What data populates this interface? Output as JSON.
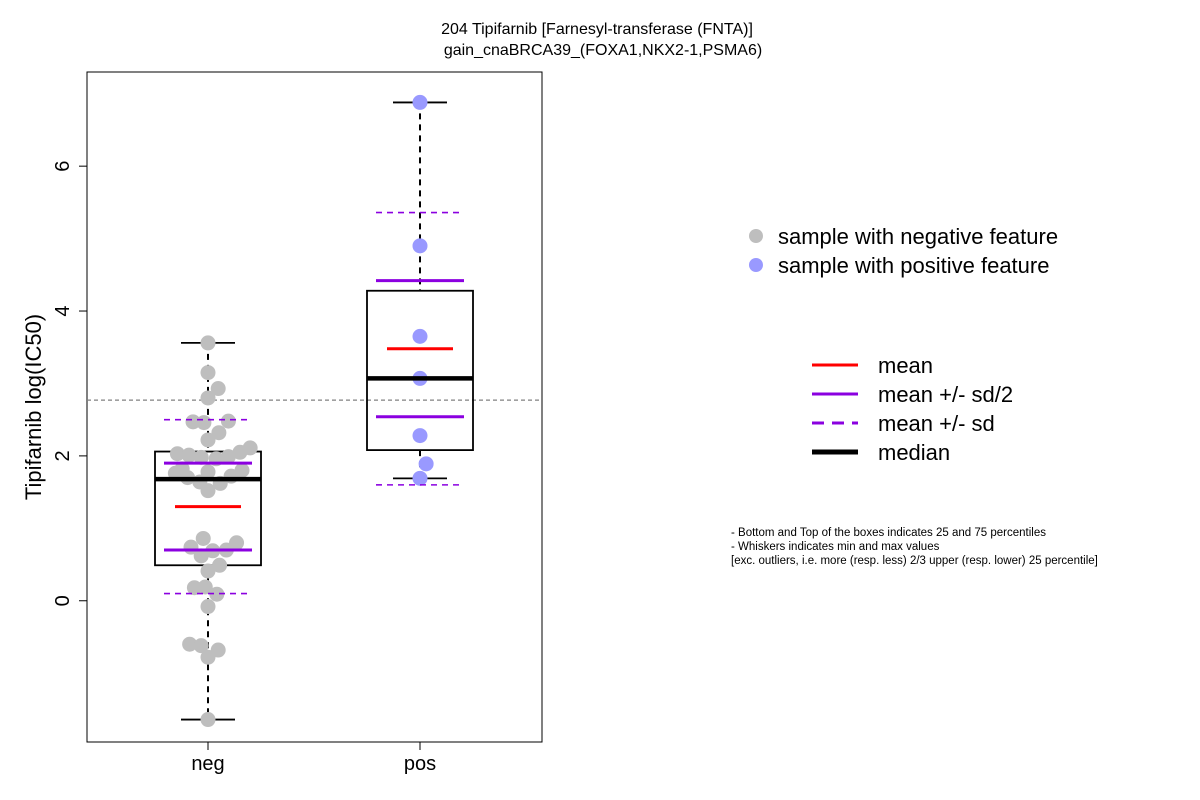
{
  "chart_data": {
    "type": "box",
    "title_line1": "204 Tipifarnib [Farnesyl-transferase (FNTA)]",
    "title_line2": "gain_cnaBRCA39_(FOXA1,NKX2-1,PSMA6)",
    "ylabel": "Tipifarnib log(IC50)",
    "xlabel": "",
    "ylim": [
      -1.95,
      7.3
    ],
    "yticks": [
      0,
      2,
      4,
      6
    ],
    "reference_line": 2.77,
    "categories": [
      "neg",
      "pos"
    ],
    "groups": [
      {
        "name": "neg",
        "point_color": "#bebebe",
        "q1": 0.49,
        "median": 1.68,
        "q3": 2.06,
        "whisker_low": -1.64,
        "whisker_high": 3.56,
        "mean": 1.3,
        "mean_minus_half_sd": 0.7,
        "mean_plus_half_sd": 1.9,
        "mean_minus_sd": 0.1,
        "mean_plus_sd": 2.5,
        "points": [
          {
            "offset": 0,
            "y": 3.56
          },
          {
            "offset": 0,
            "y": 3.15
          },
          {
            "offset": 0.15,
            "y": 2.93
          },
          {
            "offset": 0,
            "y": 2.8
          },
          {
            "offset": -0.22,
            "y": 2.47
          },
          {
            "offset": -0.06,
            "y": 2.46
          },
          {
            "offset": 0.3,
            "y": 2.48
          },
          {
            "offset": 0.16,
            "y": 2.32
          },
          {
            "offset": 0,
            "y": 2.22
          },
          {
            "offset": 0.62,
            "y": 2.11
          },
          {
            "offset": 0.47,
            "y": 2.05
          },
          {
            "offset": -0.45,
            "y": 2.03
          },
          {
            "offset": -0.28,
            "y": 2.01
          },
          {
            "offset": -0.1,
            "y": 1.98
          },
          {
            "offset": 0.12,
            "y": 1.96
          },
          {
            "offset": 0.3,
            "y": 1.99
          },
          {
            "offset": -0.38,
            "y": 1.82
          },
          {
            "offset": -0.48,
            "y": 1.76
          },
          {
            "offset": 0,
            "y": 1.78
          },
          {
            "offset": 0.34,
            "y": 1.72
          },
          {
            "offset": 0.5,
            "y": 1.8
          },
          {
            "offset": -0.3,
            "y": 1.7
          },
          {
            "offset": -0.12,
            "y": 1.64
          },
          {
            "offset": 0.18,
            "y": 1.62
          },
          {
            "offset": 0,
            "y": 1.52
          },
          {
            "offset": -0.07,
            "y": 0.86
          },
          {
            "offset": -0.25,
            "y": 0.74
          },
          {
            "offset": -0.1,
            "y": 0.62
          },
          {
            "offset": 0.07,
            "y": 0.69
          },
          {
            "offset": 0.27,
            "y": 0.7
          },
          {
            "offset": 0.42,
            "y": 0.8
          },
          {
            "offset": 0.17,
            "y": 0.49
          },
          {
            "offset": 0,
            "y": 0.41
          },
          {
            "offset": -0.2,
            "y": 0.18
          },
          {
            "offset": -0.04,
            "y": 0.19
          },
          {
            "offset": 0.13,
            "y": 0.09
          },
          {
            "offset": 0,
            "y": -0.08
          },
          {
            "offset": -0.27,
            "y": -0.6
          },
          {
            "offset": -0.1,
            "y": -0.62
          },
          {
            "offset": 0.15,
            "y": -0.68
          },
          {
            "offset": 0,
            "y": -0.78
          },
          {
            "offset": 0,
            "y": -1.64
          }
        ]
      },
      {
        "name": "pos",
        "point_color": "#9999ff",
        "q1": 2.08,
        "median": 3.07,
        "q3": 4.28,
        "whisker_low": 1.69,
        "whisker_high": 6.88,
        "mean": 3.48,
        "mean_minus_half_sd": 2.54,
        "mean_plus_half_sd": 4.42,
        "mean_minus_sd": 1.6,
        "mean_plus_sd": 5.36,
        "points": [
          {
            "offset": 0,
            "y": 6.88
          },
          {
            "offset": 0,
            "y": 4.9
          },
          {
            "offset": 0,
            "y": 3.65
          },
          {
            "offset": 0,
            "y": 3.07
          },
          {
            "offset": 0,
            "y": 2.28
          },
          {
            "offset": 0.09,
            "y": 1.89
          },
          {
            "offset": 0,
            "y": 1.69
          }
        ]
      }
    ],
    "legend_points": [
      {
        "label": "sample with negative feature",
        "color": "#bebebe"
      },
      {
        "label": "sample with positive feature",
        "color": "#9999ff"
      }
    ],
    "legend_lines": [
      {
        "label": "mean",
        "color": "#ff0000",
        "style": "solid",
        "weight": "normal"
      },
      {
        "label": "mean +/- sd/2",
        "color": "#8b00e0",
        "style": "solid",
        "weight": "normal"
      },
      {
        "label": "mean +/- sd",
        "color": "#8b00e0",
        "style": "dashed",
        "weight": "normal"
      },
      {
        "label": "median",
        "color": "#000000",
        "style": "solid",
        "weight": "bold"
      }
    ],
    "notes": [
      "- Bottom and Top of the boxes indicates 25 and 75 percentiles",
      "- Whiskers indicates min and max values",
      "[exc. outliers, i.e. more (resp. less) 2/3 upper (resp. lower) 25 percentile]"
    ],
    "colors": {
      "mean": "#ff0000",
      "sd": "#8b00e0",
      "median": "#000000",
      "reference_line": "#808080"
    }
  }
}
